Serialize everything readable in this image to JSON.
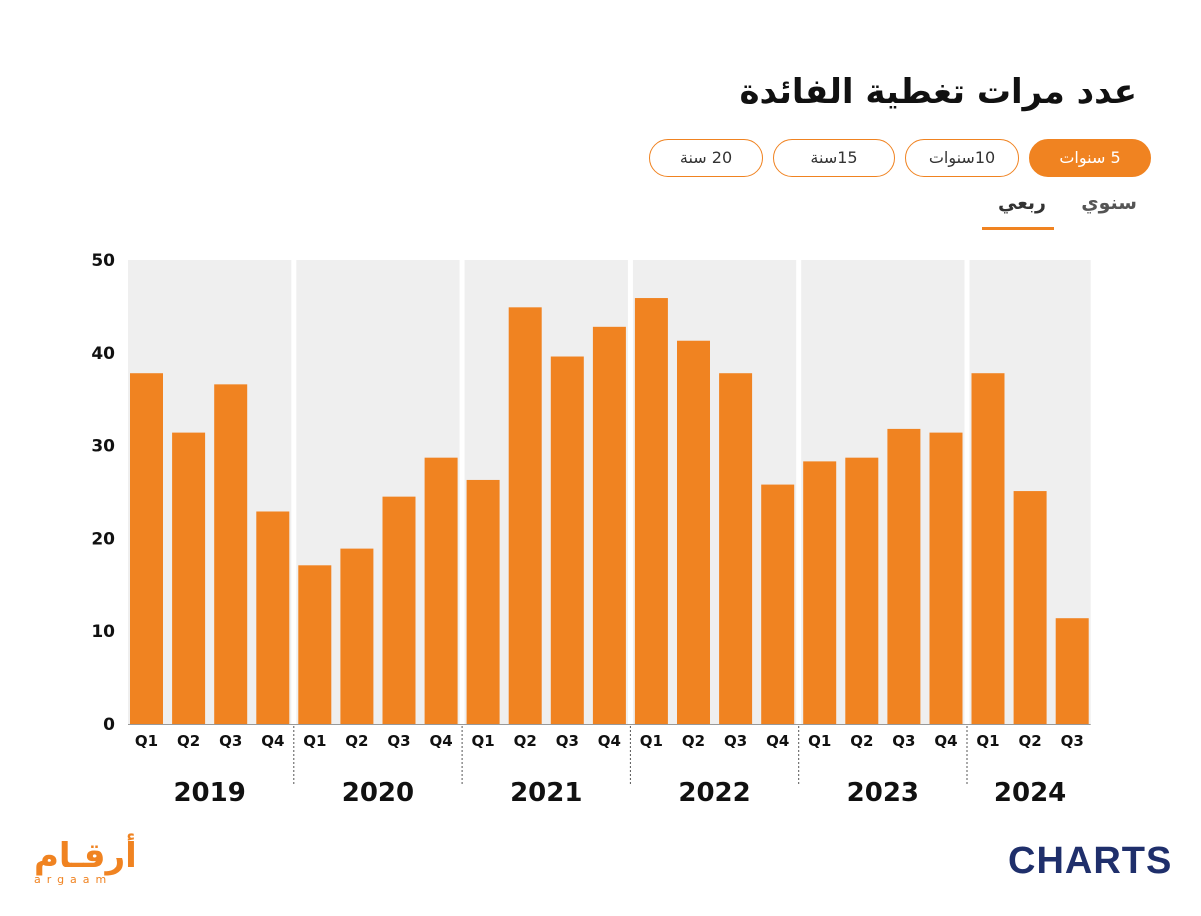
{
  "title": "عدد مرات تغطية الفائدة",
  "range_tabs": [
    {
      "label": "5 سنوات",
      "active": true
    },
    {
      "label": "10سنوات",
      "active": false
    },
    {
      "label": "15سنة",
      "active": false
    },
    {
      "label": "20 سنة",
      "active": false
    }
  ],
  "period_tabs": [
    {
      "label": "سنوي",
      "active": false
    },
    {
      "label": "ربعي",
      "active": true
    }
  ],
  "chart_data": {
    "type": "bar",
    "title": "عدد مرات تغطية الفائدة",
    "xlabel": "",
    "ylabel": "",
    "ylim": [
      0,
      50
    ],
    "yticks": [
      0,
      10,
      20,
      30,
      40,
      50
    ],
    "grid": false,
    "bar_color": "#f08321",
    "band_color": "#efefef",
    "groups": [
      {
        "year": "2019",
        "quarters": [
          "Q1",
          "Q2",
          "Q3",
          "Q4"
        ],
        "values": [
          37.8,
          31.4,
          36.6,
          22.9
        ]
      },
      {
        "year": "2020",
        "quarters": [
          "Q1",
          "Q2",
          "Q3",
          "Q4"
        ],
        "values": [
          17.1,
          18.9,
          24.5,
          28.7
        ]
      },
      {
        "year": "2021",
        "quarters": [
          "Q1",
          "Q2",
          "Q3",
          "Q4"
        ],
        "values": [
          26.3,
          44.9,
          39.6,
          42.8
        ]
      },
      {
        "year": "2022",
        "quarters": [
          "Q1",
          "Q2",
          "Q3",
          "Q4"
        ],
        "values": [
          45.9,
          41.3,
          37.8,
          25.8
        ]
      },
      {
        "year": "2023",
        "quarters": [
          "Q1",
          "Q2",
          "Q3",
          "Q4"
        ],
        "values": [
          28.3,
          28.7,
          31.8,
          31.4
        ]
      },
      {
        "year": "2024",
        "quarters": [
          "Q1",
          "Q2",
          "Q3"
        ],
        "values": [
          37.8,
          25.1,
          11.4
        ]
      }
    ]
  },
  "brands": {
    "arqaam_ar": "أرقـام",
    "arqaam_en": "argaam",
    "charts": "CHARTS"
  },
  "colors": {
    "accent": "#f08321",
    "brand_navy": "#1f2f6b"
  }
}
